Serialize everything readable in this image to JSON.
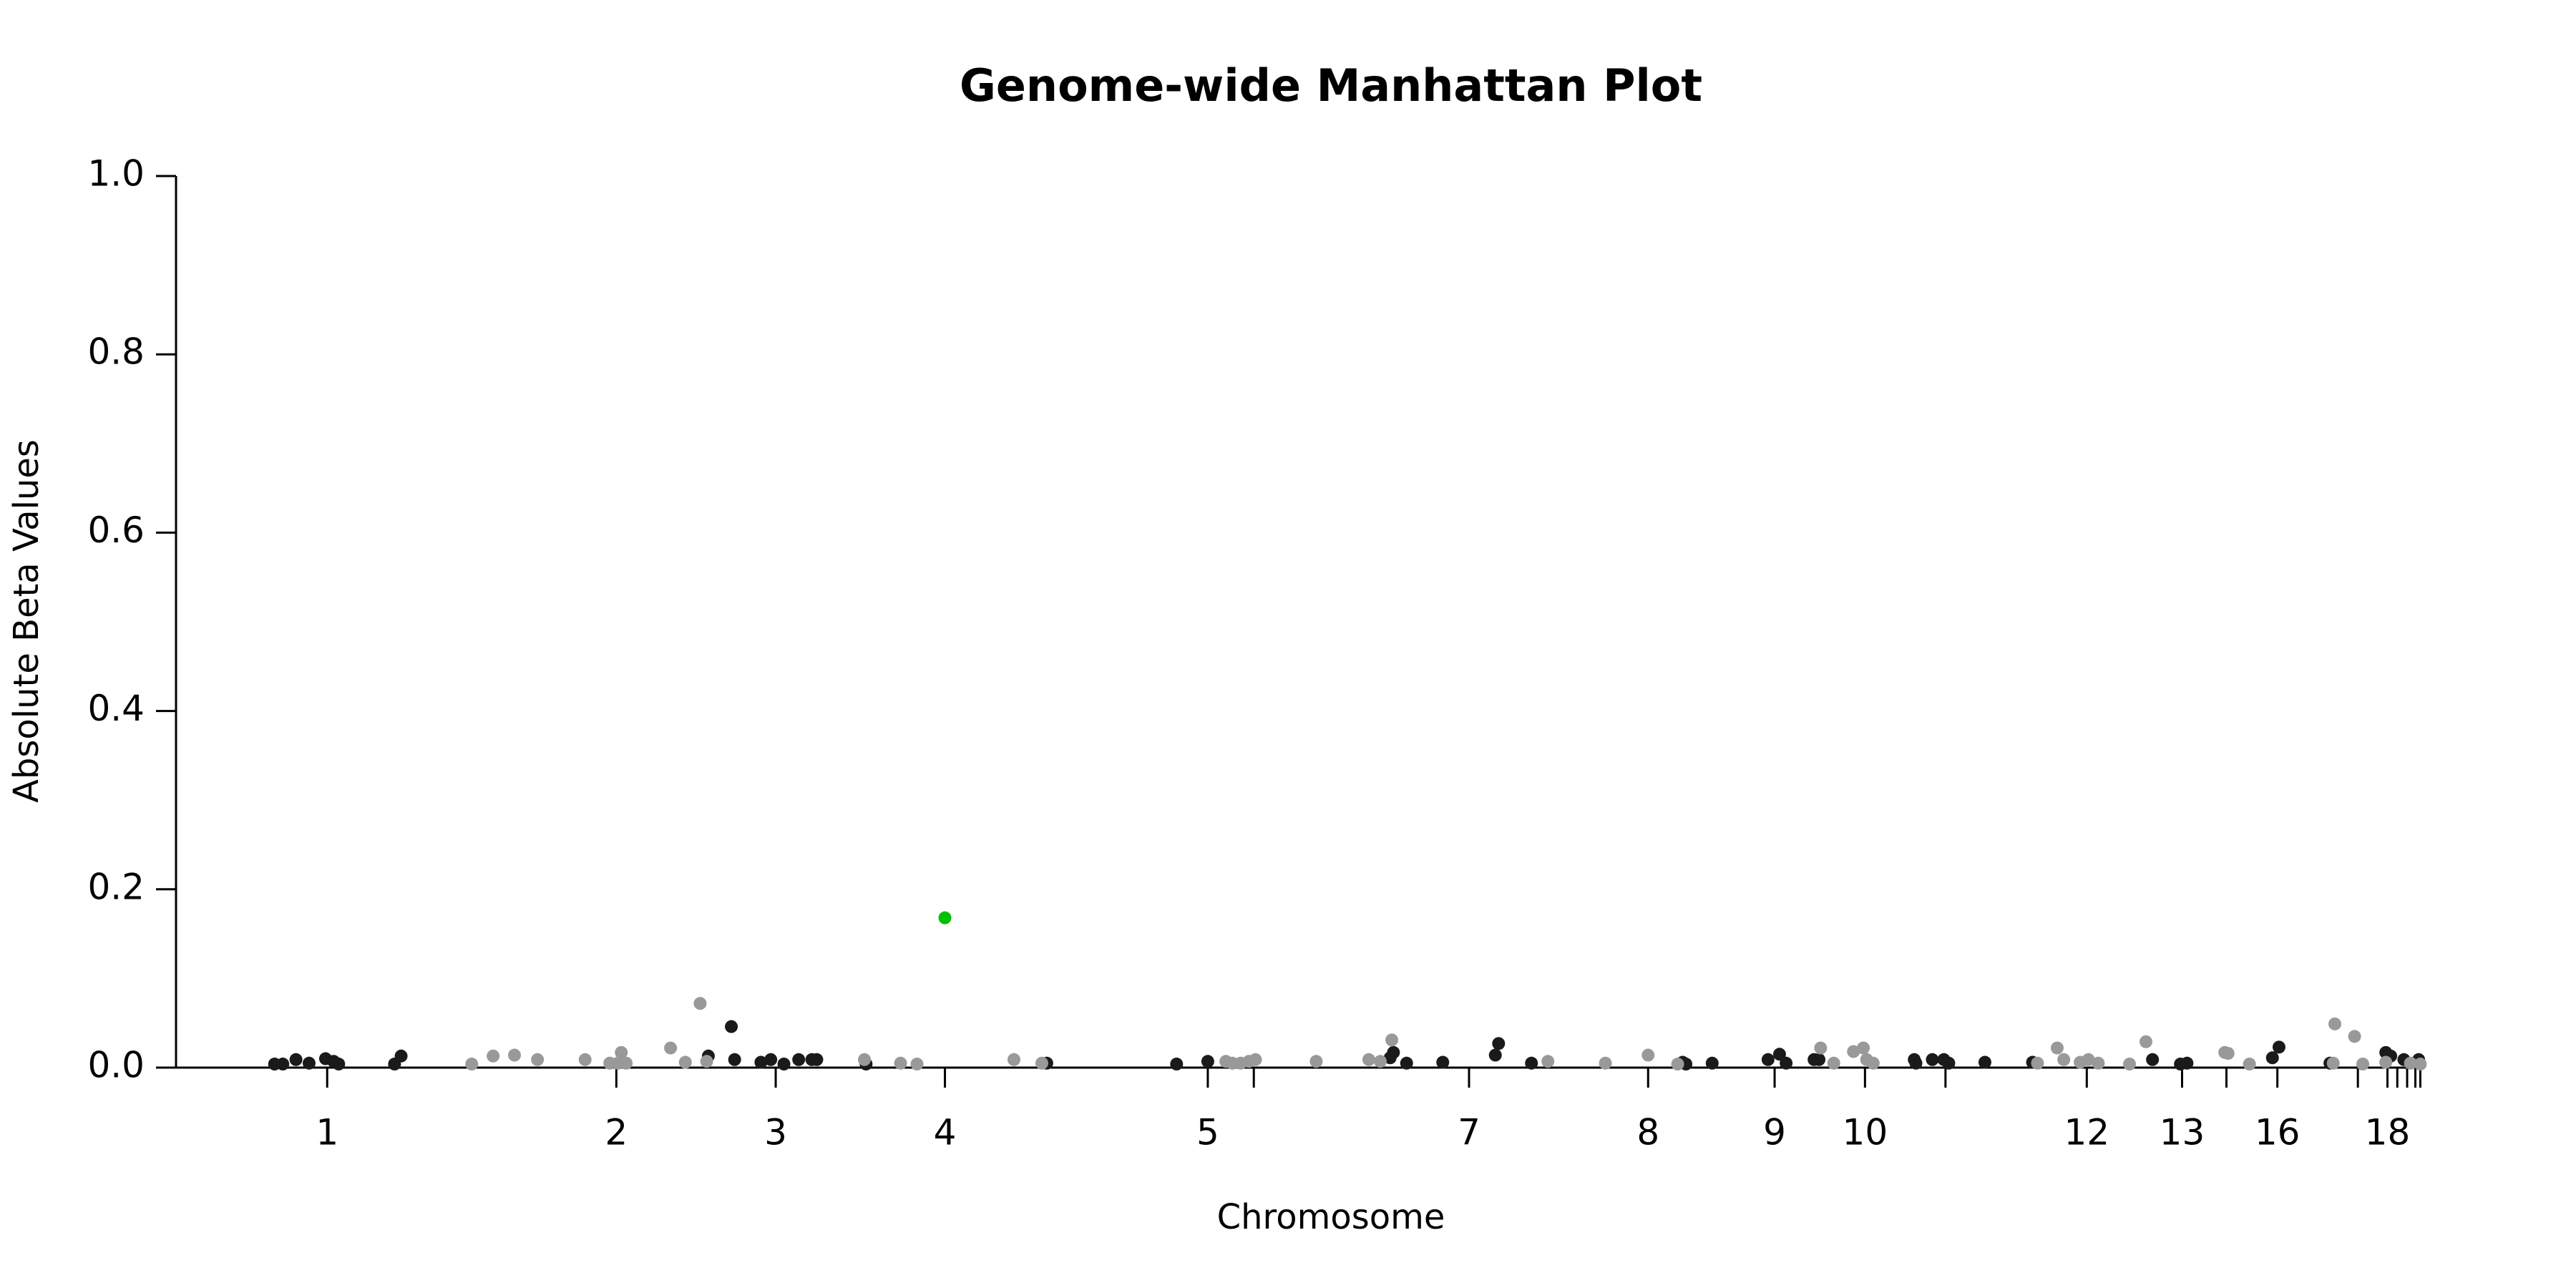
{
  "chart_data": {
    "type": "scatter",
    "title": "Genome-wide Manhattan Plot",
    "x_label": "Chromosome",
    "y_label": "Absolute Beta Values",
    "xlim": [
      107,
      1475
    ],
    "ylim": [
      0,
      1
    ],
    "yticks": [
      {
        "value": 0,
        "label": "0.0"
      },
      {
        "value": 0.2,
        "label": "0.2"
      },
      {
        "value": 0.4,
        "label": "0.4"
      },
      {
        "value": 0.6,
        "label": "0.6"
      },
      {
        "value": 0.8,
        "label": "0.8"
      },
      {
        "value": 1,
        "label": "1.0"
      }
    ],
    "xticks": [
      {
        "value": 199,
        "label": "1"
      },
      {
        "value": 375,
        "label": "2"
      },
      {
        "value": 472,
        "label": "3"
      },
      {
        "value": 575,
        "label": "4"
      },
      {
        "value": 735,
        "label": "5"
      },
      {
        "value": 763,
        "label": null
      },
      {
        "value": 894,
        "label": "7"
      },
      {
        "value": 1003,
        "label": "8"
      },
      {
        "value": 1080,
        "label": "9"
      },
      {
        "value": 1135,
        "label": "10"
      },
      {
        "value": 1184,
        "label": null
      },
      {
        "value": 1270,
        "label": "12"
      },
      {
        "value": 1328,
        "label": "13"
      },
      {
        "value": 1355,
        "label": null
      },
      {
        "value": 1386,
        "label": "16"
      },
      {
        "value": 1435,
        "label": null
      },
      {
        "value": 1453,
        "label": "18"
      },
      {
        "value": 1459,
        "label": null
      },
      {
        "value": 1465,
        "label": null
      },
      {
        "value": 1470,
        "label": null
      },
      {
        "value": 1473,
        "label": null
      }
    ],
    "series": [
      {
        "color": "#1a1a1a",
        "x": [
          167,
          172,
          180,
          188,
          198,
          203,
          206,
          240,
          244,
          431,
          445,
          447,
          463,
          469,
          477,
          486,
          494,
          497,
          527,
          637,
          716,
          735,
          846,
          848,
          856,
          878,
          910,
          912,
          932,
          1024,
          1026,
          1042,
          1076,
          1083,
          1087,
          1104,
          1107,
          1165,
          1166,
          1176,
          1183,
          1186,
          1208,
          1237,
          1310,
          1327,
          1331,
          1383,
          1387,
          1418,
          1452,
          1455,
          1463,
          1472
        ],
        "values": [
          0.004,
          0.004,
          0.009,
          0.005,
          0.01,
          0.007,
          0.004,
          0.004,
          0.013,
          0.013,
          0.046,
          0.009,
          0.006,
          0.009,
          0.004,
          0.009,
          0.009,
          0.009,
          0.004,
          0.005,
          0.004,
          0.007,
          0.011,
          0.017,
          0.005,
          0.006,
          0.014,
          0.027,
          0.005,
          0.006,
          0.004,
          0.005,
          0.009,
          0.015,
          0.005,
          0.009,
          0.009,
          0.009,
          0.005,
          0.009,
          0.009,
          0.005,
          0.006,
          0.006,
          0.009,
          0.004,
          0.005,
          0.011,
          0.023,
          0.005,
          0.017,
          0.013,
          0.009,
          0.009
        ]
      },
      {
        "color": "#999999",
        "x": [
          287,
          300,
          313,
          327,
          356,
          371,
          376,
          378,
          381,
          408,
          417,
          426,
          430,
          526,
          548,
          558,
          617,
          634,
          746,
          750,
          755,
          760,
          764,
          801,
          833,
          840,
          847,
          942,
          977,
          1003,
          1021,
          1108,
          1116,
          1128,
          1134,
          1136,
          1140,
          1240,
          1252,
          1256,
          1266,
          1271,
          1277,
          1296,
          1306,
          1354,
          1356,
          1369,
          1421,
          1420,
          1433,
          1438,
          1452,
          1467,
          1473
        ],
        "values": [
          0.004,
          0.013,
          0.014,
          0.009,
          0.009,
          0.005,
          0.005,
          0.017,
          0.005,
          0.022,
          0.006,
          0.072,
          0.007,
          0.009,
          0.005,
          0.004,
          0.009,
          0.005,
          0.007,
          0.005,
          0.005,
          0.007,
          0.009,
          0.007,
          0.009,
          0.007,
          0.031,
          0.007,
          0.005,
          0.014,
          0.004,
          0.022,
          0.005,
          0.018,
          0.022,
          0.009,
          0.005,
          0.005,
          0.022,
          0.009,
          0.006,
          0.009,
          0.005,
          0.004,
          0.029,
          0.017,
          0.016,
          0.004,
          0.049,
          0.005,
          0.035,
          0.004,
          0.006,
          0.005,
          0.004
        ]
      },
      {
        "color": "#00c000",
        "x": [
          575
        ],
        "values": [
          0.168
        ]
      }
    ]
  }
}
